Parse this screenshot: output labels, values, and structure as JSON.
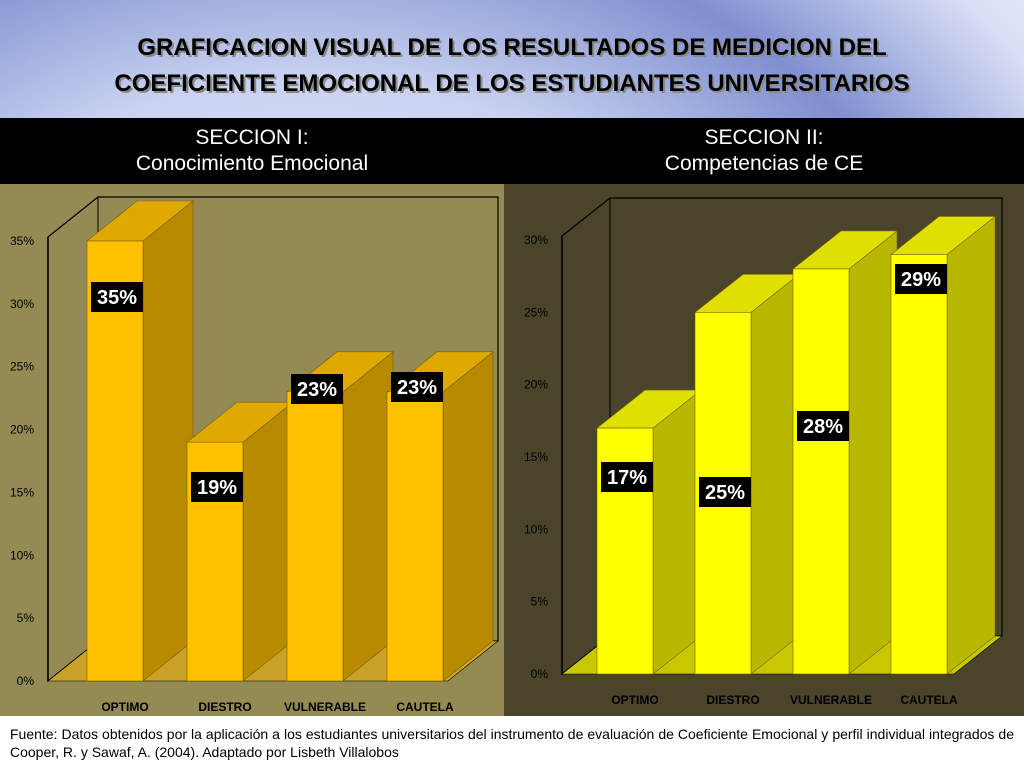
{
  "slide": {
    "title_line1": "GRAFICACION VISUAL DE  LOS RESULTADOS DE MEDICION DEL",
    "title_line2": "COEFICIENTE EMOCIONAL DE LOS ESTUDIANTES UNIVERSITARIOS",
    "footer": "Fuente: Datos obtenidos por la aplicación a los estudiantes universitarios del instrumento  de evaluación de Coeficiente Emocional y perfil individual integrados  de Cooper, R. y Sawaf, A. (2004). Adaptado por Lisbeth Villalobos"
  },
  "chart_data": [
    {
      "type": "bar",
      "header_line1": "SECCION I:",
      "header_line2": "Conocimiento Emocional",
      "categories": [
        "OPTIMO",
        "DIESTRO",
        "VULNERABLE",
        "CAUTELA"
      ],
      "values": [
        35,
        19,
        23,
        23
      ],
      "data_labels": [
        "35%",
        "19%",
        "23%",
        "23%"
      ],
      "yticks": [
        "0%",
        "5%",
        "10%",
        "15%",
        "20%",
        "25%",
        "30%",
        "35%"
      ],
      "ylim": [
        0,
        35
      ],
      "bar_color": "#ffc000",
      "background": "#948a54",
      "floor_color": "#c9a227"
    },
    {
      "type": "bar",
      "header_line1": "SECCION II:",
      "header_line2": "Competencias de CE",
      "categories": [
        "OPTIMO",
        "DIESTRO",
        "VULNERABLE",
        "CAUTELA"
      ],
      "values": [
        17,
        25,
        28,
        29
      ],
      "data_labels": [
        "17%",
        "25%",
        "28%",
        "29%"
      ],
      "yticks": [
        "0%",
        "5%",
        "10%",
        "15%",
        "20%",
        "25%",
        "30%"
      ],
      "ylim": [
        0,
        30
      ],
      "bar_color": "#ffff00",
      "background": "#4a442a",
      "floor_color": "#c8c800"
    }
  ]
}
